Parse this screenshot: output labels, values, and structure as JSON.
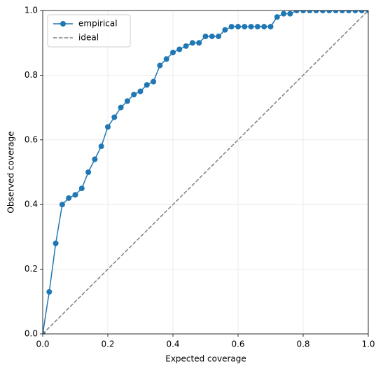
{
  "chart_data": {
    "type": "line",
    "xlabel": "Expected coverage",
    "ylabel": "Observed coverage",
    "xlim": [
      0,
      1
    ],
    "ylim": [
      0,
      1
    ],
    "xticks": [
      {
        "value": 0,
        "label": "0.0"
      },
      0.2,
      0.4,
      0.6,
      0.8,
      {
        "value": 1,
        "label": "1.0"
      }
    ],
    "yticks": [
      {
        "value": 0,
        "label": "0.0"
      },
      0.2,
      0.4,
      0.6,
      0.8,
      {
        "value": 1,
        "label": "1.0"
      }
    ],
    "grid": true,
    "legend": "upper left",
    "series": [
      {
        "name": "empirical",
        "color": "#1f77b4",
        "marker": "circle",
        "dashed": false,
        "x": [
          0,
          0.02,
          0.04,
          0.06,
          0.08,
          0.1,
          0.12,
          0.14,
          0.16,
          0.18,
          0.2,
          0.22,
          0.24,
          0.26,
          0.28,
          0.3,
          0.32,
          0.34,
          0.36,
          0.38,
          0.4,
          0.42,
          0.44,
          0.46,
          0.48,
          0.5,
          0.52,
          0.54,
          0.56,
          0.58,
          0.6,
          0.62,
          0.64,
          0.66,
          0.68,
          0.7,
          0.72,
          0.74,
          0.76,
          0.78,
          0.8,
          0.82,
          0.84,
          0.86,
          0.88,
          0.9,
          0.92,
          0.94,
          0.96,
          0.98,
          1
        ],
        "values": [
          0,
          0.13,
          0.28,
          0.4,
          0.42,
          0.43,
          0.45,
          0.5,
          0.54,
          0.58,
          0.64,
          0.67,
          0.7,
          0.72,
          0.74,
          0.75,
          0.77,
          0.78,
          0.83,
          0.85,
          0.87,
          0.88,
          0.89,
          0.9,
          0.9,
          0.92,
          0.92,
          0.92,
          0.94,
          0.95,
          0.95,
          0.95,
          0.95,
          0.95,
          0.95,
          0.95,
          0.98,
          0.99,
          0.99,
          1,
          1,
          1,
          1,
          1,
          1,
          1,
          1,
          1,
          1,
          1,
          1
        ]
      },
      {
        "name": "ideal",
        "color": "#808080",
        "marker": "none",
        "dashed": true,
        "x": [
          0,
          1
        ],
        "values": [
          0,
          1
        ]
      }
    ]
  }
}
